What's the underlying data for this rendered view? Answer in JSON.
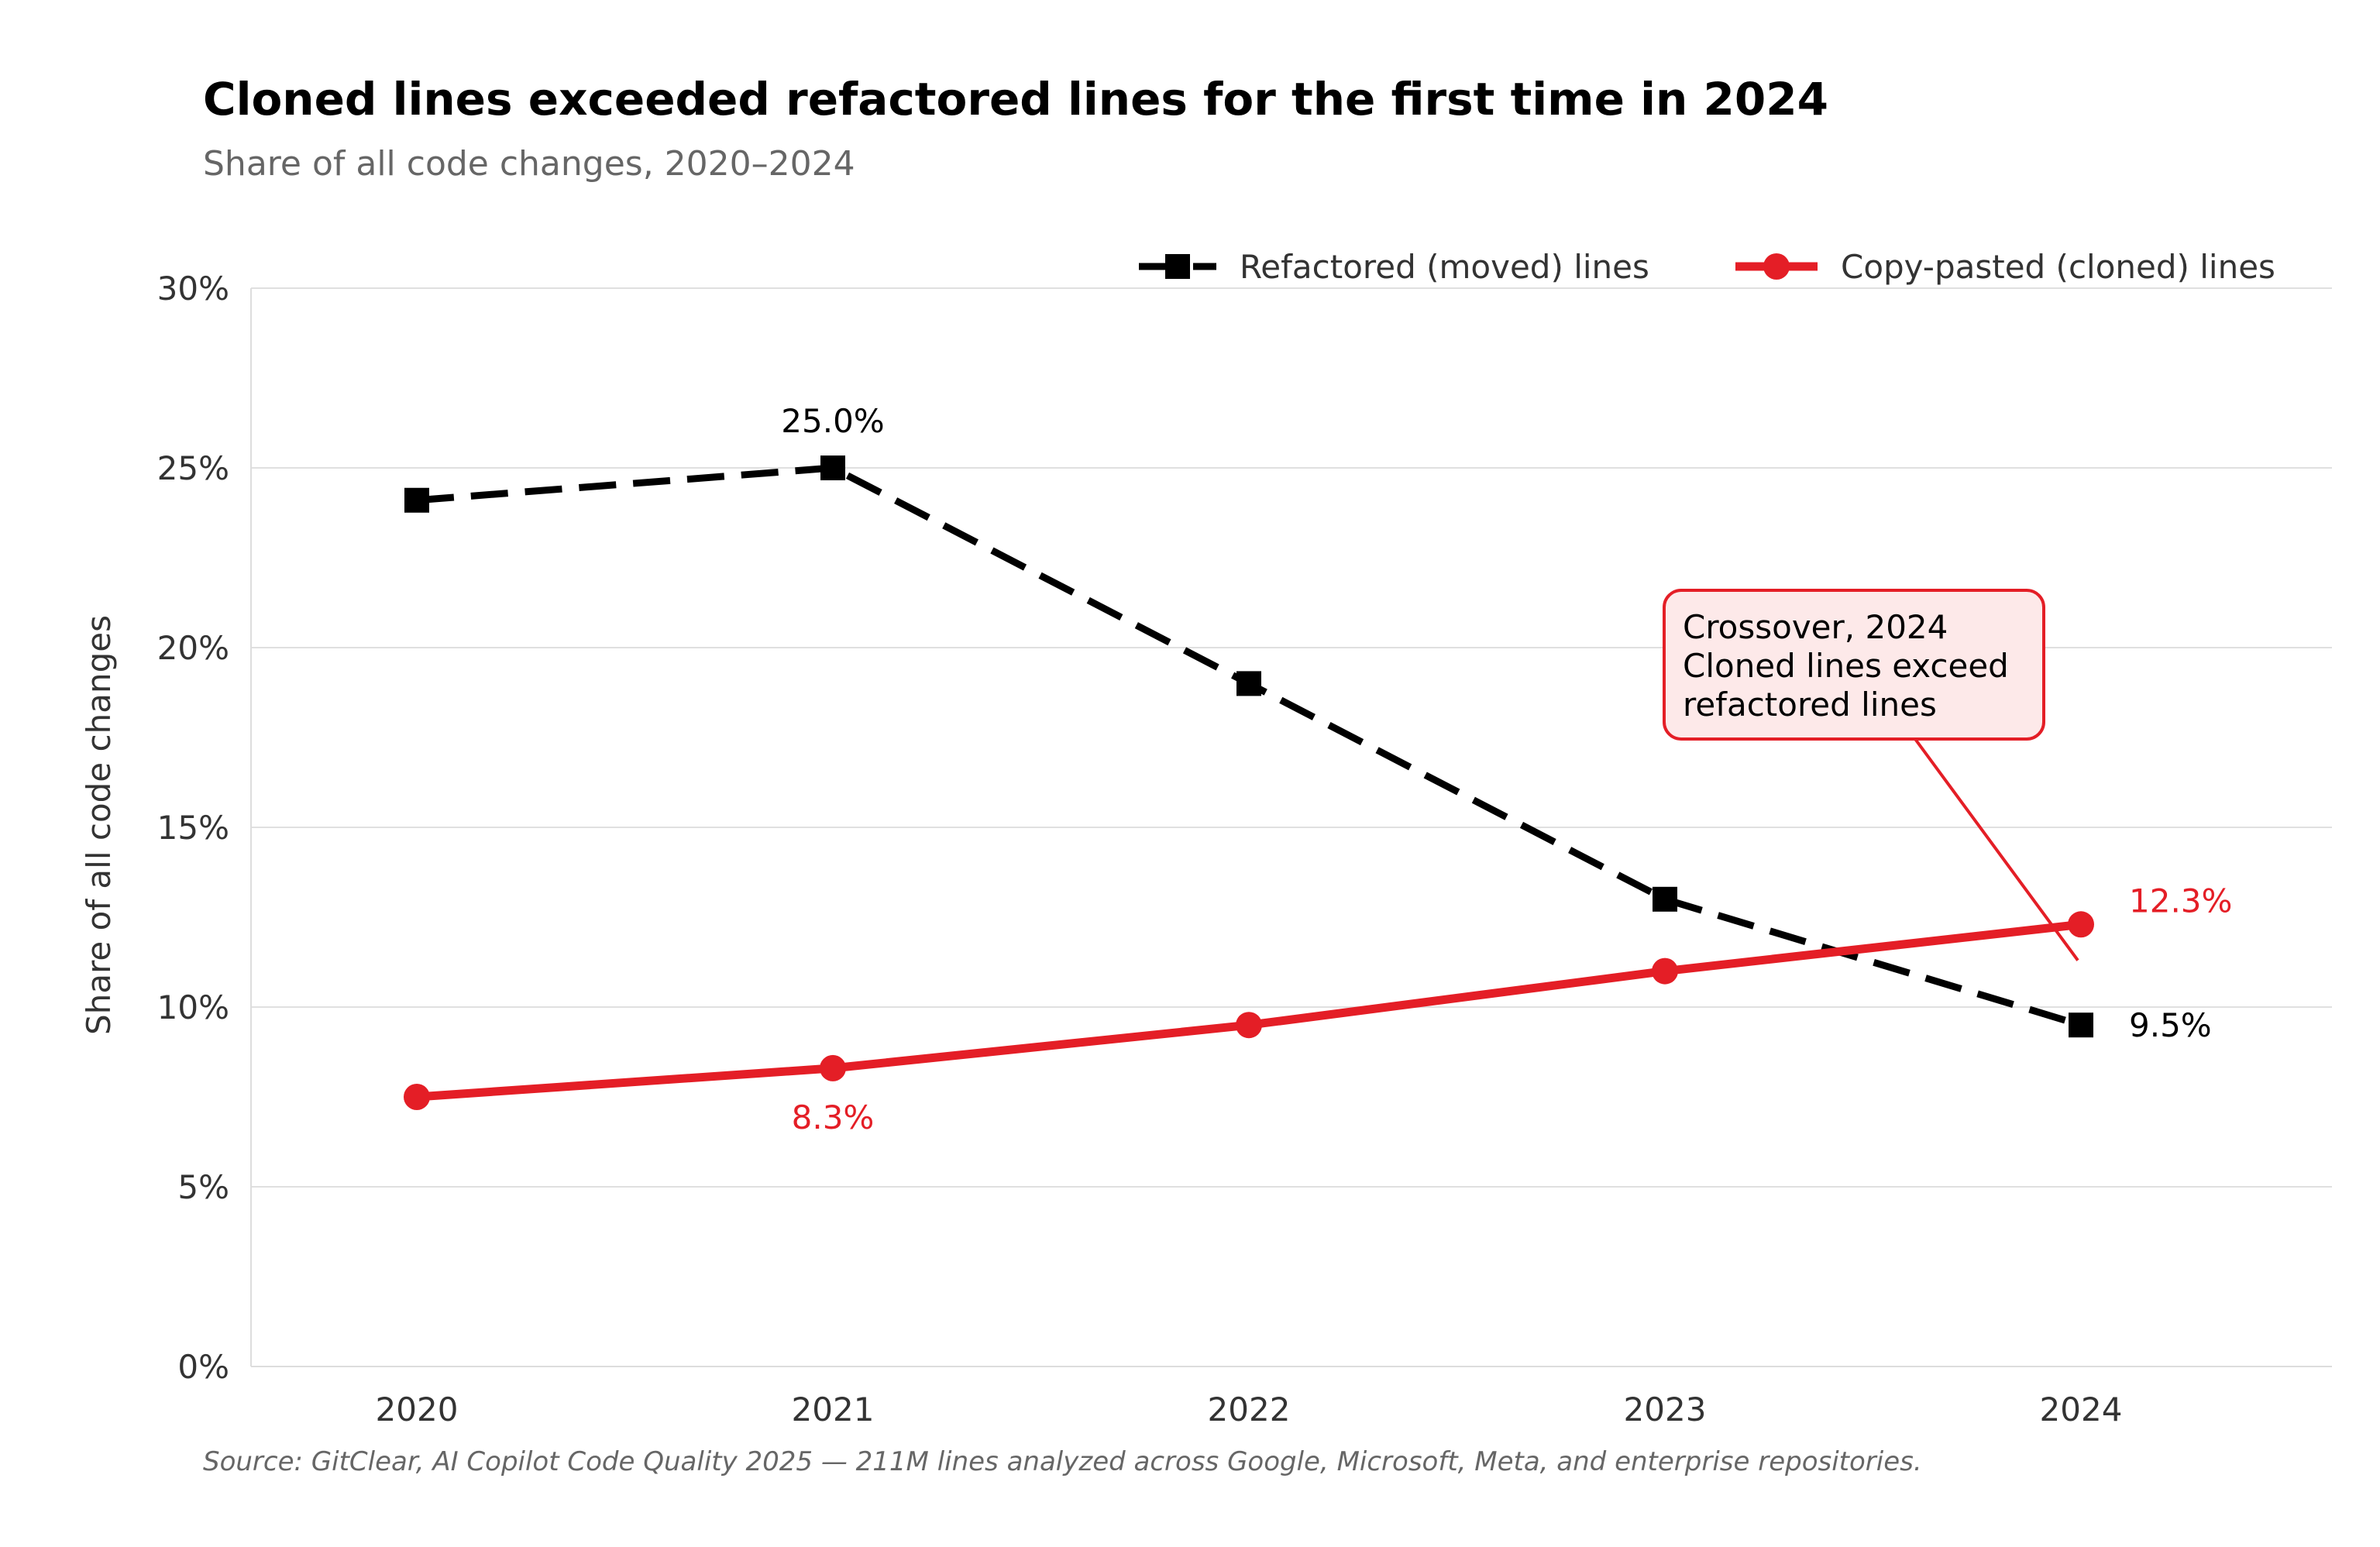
{
  "chart_data": {
    "type": "line",
    "title": "Cloned lines exceeded refactored lines for the first time in 2024",
    "subtitle": "Share of all code changes, 2020–2024",
    "xlabel": "",
    "ylabel": "Share of all code changes",
    "categories": [
      "2020",
      "2021",
      "2022",
      "2023",
      "2024"
    ],
    "ylim": [
      0,
      30
    ],
    "yticks": [
      0,
      5,
      10,
      15,
      20,
      25,
      30
    ],
    "ytick_labels": [
      "0%",
      "5%",
      "10%",
      "15%",
      "20%",
      "25%",
      "30%"
    ],
    "grid": "horizontal",
    "legend_position": "top-right",
    "series": [
      {
        "name": "Refactored (moved) lines",
        "values": [
          24.1,
          25.0,
          19.0,
          13.0,
          9.5
        ],
        "color": "#000000",
        "line_style": "dashed",
        "marker": "square"
      },
      {
        "name": "Copy-pasted (cloned) lines",
        "values": [
          7.5,
          8.3,
          9.5,
          11.0,
          12.3
        ],
        "color": "#e41e26",
        "line_style": "solid",
        "marker": "circle"
      }
    ],
    "data_labels": [
      {
        "series": 0,
        "index": 1,
        "text": "25.0%"
      },
      {
        "series": 0,
        "index": 4,
        "text": "9.5%"
      },
      {
        "series": 1,
        "index": 1,
        "text": "8.3%"
      },
      {
        "series": 1,
        "index": 4,
        "text": "12.3%"
      }
    ],
    "annotation": {
      "lines": [
        "Crossover, 2024",
        "Cloned lines exceed",
        "refactored lines"
      ],
      "points_to": {
        "x": "2024",
        "y": 11.3
      }
    },
    "source": "Source: GitClear, AI Copilot Code Quality 2025 — 211M lines analyzed across Google, Microsoft, Meta, and enterprise repositories."
  }
}
